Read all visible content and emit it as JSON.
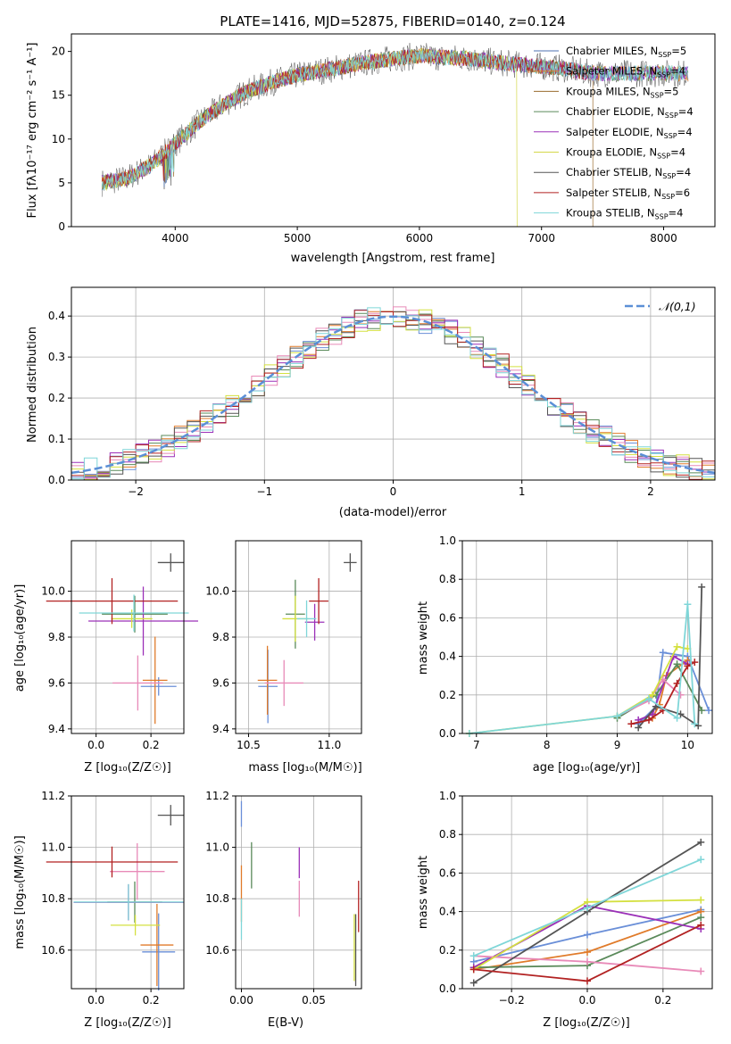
{
  "figure": {
    "title": "PLATE=1416, MJD=52875, FIBERID=0140, z=0.124"
  },
  "colors": {
    "models": [
      "#4c72b0",
      "#e07b2a",
      "#9a6b2f",
      "#5a8a5a",
      "#9b30b8",
      "#d4d84a",
      "#555555",
      "#b22222",
      "#7fd6d8"
    ],
    "fit_series": [
      "#6a8fd8",
      "#e07b2a",
      "#5a8a5a",
      "#9b30b8",
      "#e88ab8",
      "#d4e040",
      "#555555",
      "#b22222",
      "#7fd6d8"
    ]
  },
  "chart_data": [
    {
      "id": "spectrum",
      "type": "line",
      "xlabel": "wavelength [Angstrom, rest frame]",
      "ylabel": "Flux [fλ10⁻¹⁷ erg cm⁻² s⁻¹ A⁻¹]",
      "xlim": [
        3150,
        8420
      ],
      "ylim": [
        0,
        22
      ],
      "xticks": [
        4000,
        5000,
        6000,
        7000,
        8000
      ],
      "yticks": [
        0,
        5,
        10,
        15,
        20
      ],
      "grid": false,
      "legend_position": "top-right",
      "legend": [
        "Chabrier MILES, N_SSP=5",
        "Salpeter MILES, N_SSP=4",
        "Kroupa MILES, N_SSP=5",
        "Chabrier ELODIE, N_SSP=4",
        "Salpeter ELODIE, N_SSP=4",
        "Kroupa ELODIE, N_SSP=4",
        "Chabrier STELIB, N_SSP=4",
        "Salpeter STELIB, N_SSP=6",
        "Kroupa STELIB, N_SSP=4"
      ],
      "continuum_anchor_points": {
        "x": [
          3400,
          3600,
          3800,
          4000,
          4200,
          4400,
          4600,
          4800,
          5000,
          5200,
          5400,
          5600,
          5800,
          6000,
          6200,
          6400,
          6600,
          6800,
          7000,
          7200,
          7400
        ],
        "y": [
          5,
          5.5,
          7,
          9.5,
          12,
          14,
          15.5,
          16.5,
          17.3,
          17.8,
          18.3,
          18.8,
          19.2,
          19.5,
          19.3,
          19.2,
          18.8,
          18.5,
          18.3,
          18,
          17.5
        ]
      }
    },
    {
      "id": "residuals",
      "type": "line",
      "xlabel": "(data-model)/error",
      "ylabel": "Normed distribution",
      "xlim": [
        -2.5,
        2.5
      ],
      "ylim": [
        0,
        0.47
      ],
      "xticks": [
        -2,
        -1,
        0,
        1,
        2
      ],
      "yticks": [
        0.0,
        0.1,
        0.2,
        0.3,
        0.4
      ],
      "grid": true,
      "legend_position": "top-right",
      "legend": [
        "𝒩(0,1)"
      ],
      "gaussian": {
        "mean": 0,
        "sigma": 1
      }
    },
    {
      "id": "age-vs-Z",
      "type": "scatter",
      "xlabel": "Z [log₁₀(Z/Z☉)]",
      "ylabel": "age  [log₁₀(age/yr)]",
      "xlim": [
        -0.09,
        0.32
      ],
      "ylim": [
        9.38,
        10.22
      ],
      "xticks": [
        0.0,
        0.2
      ],
      "yticks": [
        9.4,
        9.6,
        9.8,
        10.0
      ],
      "grid": true,
      "points": [
        {
          "x": 0.228,
          "y": 9.585,
          "xerr": 0.065,
          "yerr": 0.04
        },
        {
          "x": 0.215,
          "y": 9.612,
          "xerr": 0.045,
          "yerr": 0.19
        },
        {
          "x": 0.141,
          "y": 9.9,
          "xerr": 0.12,
          "yerr": 0.08
        },
        {
          "x": 0.172,
          "y": 9.87,
          "xerr": 0.2,
          "yerr": 0.15
        },
        {
          "x": 0.152,
          "y": 9.6,
          "xerr": 0.092,
          "yerr": 0.12
        },
        {
          "x": 0.13,
          "y": 9.88,
          "xerr": 0.075,
          "yerr": 0.04
        },
        {
          "x": 0.272,
          "y": 10.125,
          "xerr": 0.047,
          "yerr": 0.04
        },
        {
          "x": 0.058,
          "y": 9.957,
          "xerr": 0.24,
          "yerr": 0.1
        },
        {
          "x": 0.138,
          "y": 9.905,
          "xerr": 0.2,
          "yerr": 0.08
        }
      ]
    },
    {
      "id": "age-vs-mass",
      "type": "scatter",
      "xlabel": "mass [log₁₀(M/M☉)]",
      "ylabel": "",
      "xlim": [
        10.42,
        11.2
      ],
      "ylim": [
        9.38,
        10.22
      ],
      "xticks": [
        10.5,
        11.0
      ],
      "yticks": [
        9.4,
        9.6,
        9.8,
        10.0
      ],
      "grid": true,
      "points": [
        {
          "x": 10.62,
          "y": 9.585,
          "xerr": 0.06,
          "yerr": 0.16
        },
        {
          "x": 10.617,
          "y": 9.612,
          "xerr": 0.06,
          "yerr": 0.15
        },
        {
          "x": 10.79,
          "y": 9.9,
          "xerr": 0.06,
          "yerr": 0.15
        },
        {
          "x": 10.91,
          "y": 9.865,
          "xerr": 0.06,
          "yerr": 0.08
        },
        {
          "x": 10.72,
          "y": 9.6,
          "xerr": 0.12,
          "yerr": 0.1
        },
        {
          "x": 10.79,
          "y": 9.88,
          "xerr": 0.08,
          "yerr": 0.1
        },
        {
          "x": 11.13,
          "y": 10.125,
          "xerr": 0.04,
          "yerr": 0.04
        },
        {
          "x": 10.935,
          "y": 9.957,
          "xerr": 0.06,
          "yerr": 0.1
        },
        {
          "x": 10.86,
          "y": 9.88,
          "xerr": 0.06,
          "yerr": 0.08
        }
      ]
    },
    {
      "id": "mass-weight-vs-age",
      "type": "line",
      "xlabel": "age  [log₁₀(age/yr)]",
      "ylabel": "mass weight",
      "xlim": [
        6.8,
        10.35
      ],
      "ylim": [
        0,
        1
      ],
      "xticks": [
        7,
        8,
        9,
        10
      ],
      "yticks": [
        0.0,
        0.2,
        0.4,
        0.6,
        0.8,
        1.0
      ],
      "grid": true,
      "series": [
        {
          "x": [
            9.3,
            9.55,
            9.65,
            10.0,
            10.3
          ],
          "y": [
            0.05,
            0.14,
            0.42,
            0.4,
            0.12
          ]
        },
        {
          "x": [
            9.5,
            9.6,
            9.7,
            10.0
          ],
          "y": [
            0.08,
            0.15,
            0.3,
            0.38
          ]
        },
        {
          "x": [
            9.0,
            9.55,
            9.85,
            10.2
          ],
          "y": [
            0.08,
            0.2,
            0.36,
            0.12
          ]
        },
        {
          "x": [
            9.3,
            9.5,
            9.8,
            10.0
          ],
          "y": [
            0.07,
            0.1,
            0.4,
            0.36
          ]
        },
        {
          "x": [
            9.0,
            9.45,
            9.65,
            9.9
          ],
          "y": [
            0.09,
            0.17,
            0.28,
            0.2
          ]
        },
        {
          "x": [
            6.9,
            9.0,
            9.5,
            9.85,
            10.0
          ],
          "y": [
            0.0,
            0.09,
            0.2,
            0.45,
            0.44
          ]
        },
        {
          "x": [
            9.3,
            9.55,
            9.9,
            10.15,
            10.2
          ],
          "y": [
            0.03,
            0.14,
            0.1,
            0.04,
            0.76
          ]
        },
        {
          "x": [
            9.2,
            9.45,
            9.65,
            9.85,
            10.0,
            10.1
          ],
          "y": [
            0.05,
            0.07,
            0.12,
            0.26,
            0.35,
            0.37
          ]
        },
        {
          "x": [
            6.9,
            9.0,
            9.45,
            9.85,
            10.0,
            10.1
          ],
          "y": [
            0.0,
            0.09,
            0.18,
            0.08,
            0.67,
            0.05
          ]
        }
      ]
    },
    {
      "id": "mass-vs-Z",
      "type": "scatter",
      "xlabel": "Z [log₁₀(Z/Z☉)]",
      "ylabel": "mass [log₁₀(M/M☉)]",
      "xlim": [
        -0.09,
        0.32
      ],
      "ylim": [
        10.45,
        11.2
      ],
      "xticks": [
        0.0,
        0.2
      ],
      "yticks": [
        10.6,
        10.8,
        11.0,
        11.2
      ],
      "grid": true,
      "points": [
        {
          "x": 0.228,
          "y": 10.593,
          "xerr": 0.06,
          "yerr": 0.15
        },
        {
          "x": 0.222,
          "y": 10.62,
          "xerr": 0.06,
          "yerr": 0.16
        },
        {
          "x": 0.141,
          "y": 10.787,
          "xerr": 0.1,
          "yerr": 0.08
        },
        {
          "x": 0.118,
          "y": 10.786,
          "xerr": 0.2,
          "yerr": 0.07
        },
        {
          "x": 0.15,
          "y": 10.906,
          "xerr": 0.1,
          "yerr": 0.11
        },
        {
          "x": 0.143,
          "y": 10.697,
          "xerr": 0.09,
          "yerr": 0.04
        },
        {
          "x": 0.272,
          "y": 11.125,
          "xerr": 0.047,
          "yerr": 0.04
        },
        {
          "x": 0.058,
          "y": 10.943,
          "xerr": 0.24,
          "yerr": 0.06
        },
        {
          "x": 0.118,
          "y": 10.787,
          "xerr": 0.2,
          "yerr": 0.07
        }
      ]
    },
    {
      "id": "mass-vs-ebv",
      "type": "scatter",
      "xlabel": "E(B-V)",
      "ylabel": "",
      "xlim": [
        -0.004,
        0.083
      ],
      "ylim": [
        10.45,
        11.2
      ],
      "xticks": [
        0.0,
        0.05
      ],
      "yticks": [
        10.6,
        10.8,
        11.0,
        11.2
      ],
      "grid": true,
      "points": [
        {
          "x": 0.0,
          "y": 11.13,
          "yerr": 0.05
        },
        {
          "x": 0.0,
          "y": 10.82,
          "yerr": 0.11
        },
        {
          "x": 0.007,
          "y": 10.93,
          "yerr": 0.09
        },
        {
          "x": 0.04,
          "y": 10.94,
          "yerr": 0.06
        },
        {
          "x": 0.04,
          "y": 10.8,
          "yerr": 0.07
        },
        {
          "x": 0.078,
          "y": 10.61,
          "yerr": 0.13
        },
        {
          "x": 0.079,
          "y": 10.6,
          "yerr": 0.14
        },
        {
          "x": 0.081,
          "y": 10.77,
          "yerr": 0.1
        },
        {
          "x": 0.0,
          "y": 10.72,
          "yerr": 0.08
        }
      ]
    },
    {
      "id": "mass-weight-vs-Z",
      "type": "line",
      "xlabel": "Z [log₁₀(Z/Z☉)]",
      "ylabel": "mass weight",
      "xlim": [
        -0.33,
        0.33
      ],
      "ylim": [
        0,
        1
      ],
      "xticks": [
        -0.2,
        0.0,
        0.2
      ],
      "yticks": [
        0.0,
        0.2,
        0.4,
        0.6,
        0.8,
        1.0
      ],
      "grid": true,
      "series": [
        {
          "x": [
            -0.3,
            0.0,
            0.3
          ],
          "y": [
            0.14,
            0.28,
            0.41
          ]
        },
        {
          "x": [
            -0.3,
            0.0,
            0.3
          ],
          "y": [
            0.1,
            0.19,
            0.4
          ]
        },
        {
          "x": [
            -0.3,
            0.0,
            0.3
          ],
          "y": [
            0.11,
            0.12,
            0.37
          ]
        },
        {
          "x": [
            -0.3,
            0.0,
            0.3
          ],
          "y": [
            0.11,
            0.43,
            0.31
          ]
        },
        {
          "x": [
            -0.3,
            0.0,
            0.3
          ],
          "y": [
            0.17,
            0.14,
            0.09
          ]
        },
        {
          "x": [
            -0.3,
            0.0,
            0.3
          ],
          "y": [
            0.1,
            0.45,
            0.46
          ]
        },
        {
          "x": [
            -0.3,
            0.0,
            0.3
          ],
          "y": [
            0.03,
            0.4,
            0.76
          ]
        },
        {
          "x": [
            -0.3,
            0.0,
            0.3
          ],
          "y": [
            0.1,
            0.04,
            0.33
          ]
        },
        {
          "x": [
            -0.3,
            0.0,
            0.3
          ],
          "y": [
            0.17,
            0.42,
            0.67
          ]
        }
      ]
    }
  ]
}
